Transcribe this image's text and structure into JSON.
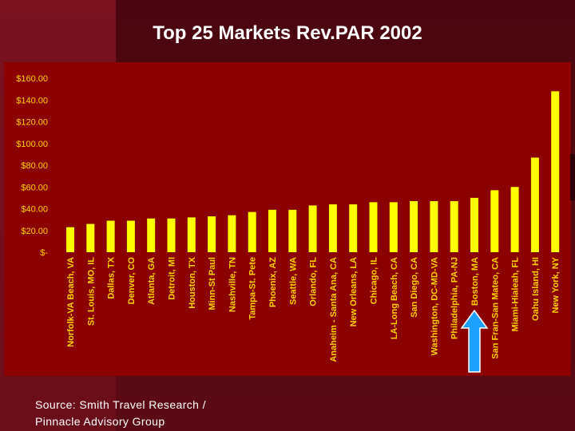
{
  "title": "Top 25 Markets Rev.PAR 2002",
  "source_line1": "Source: Smith Travel Research /",
  "source_line2": "Pinnacle Advisory Group",
  "colors": {
    "bar": "#ffff00",
    "plot_bg": "#8b0000",
    "tick_text": "#ffd400",
    "arrow": "#1ea0ff"
  },
  "arrow_icon": "up-arrow-icon",
  "chart_data": {
    "type": "bar",
    "title": "Top 25 Markets Rev.PAR 2002",
    "ylim": [
      0,
      160
    ],
    "yticks": [
      0,
      20,
      40,
      60,
      80,
      100,
      120,
      140,
      160
    ],
    "ytick_labels": [
      "$-",
      "$20.00",
      "$40.00",
      "$60.00",
      "$80.00",
      "$100.00",
      "$120.00",
      "$140.00",
      "$160.00"
    ],
    "categories": [
      "Norfolk-VA Beach, VA",
      "St. Louis, MO, IL",
      "Dallas, TX",
      "Denver, CO",
      "Atlanta, GA",
      "Detroit, MI",
      "Houston, TX",
      "Minn-St Paul",
      "Nashville, TN",
      "Tampa-St. Pete",
      "Phoenix, AZ",
      "Seattle, WA",
      "Orlando, FL",
      "Anaheim - Santa Ana, CA",
      "New Orleans, LA",
      "Chicago, IL",
      "LA-Long Beach, CA",
      "San Diego, CA",
      "Washington, DC-MD-VA",
      "Philadelphia, PA-NJ",
      "Boston, MA",
      "San Fran-San Mateo, CA",
      "Miami-Hialeah, FL",
      "Oahu Island, HI",
      "New York, NY"
    ],
    "values": [
      23,
      26,
      29,
      29,
      31,
      31,
      32,
      33,
      34,
      37,
      39,
      39,
      43,
      44,
      44,
      46,
      46,
      47,
      47,
      47,
      50,
      57,
      60,
      87,
      148
    ],
    "highlight_category": "Boston, MA",
    "grid": false,
    "legend": false
  }
}
